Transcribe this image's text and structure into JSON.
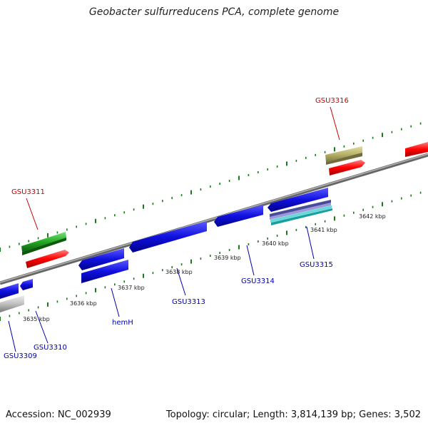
{
  "title": "Geobacter sulfurreducens PCA, complete genome",
  "footer": {
    "accession": "Accession: NC_002939",
    "stats": "Topology: circular; Length: 3,814,139 bp; Genes: 3,502"
  },
  "ticks": [
    "3635 kbp",
    "3636 kbp",
    "3637 kbp",
    "3638 kbp",
    "3639 kbp",
    "3640 kbp",
    "3641 kbp",
    "3642 kbp"
  ],
  "gene_labels": {
    "GSU3311": "GSU3311",
    "GSU3316": "GSU3316",
    "GSU3309": "GSU3309",
    "GSU3310": "GSU3310",
    "hemH": "hemH",
    "GSU3313": "GSU3313",
    "GSU3314": "GSU3314",
    "GSU3315": "GSU3315"
  },
  "colors": {
    "forward_label": "#cc0000",
    "reverse_label": "#0000aa",
    "cds_blue": "#1010e0",
    "cds_red": "#ff0000",
    "cds_green": "#22aa22",
    "cds_olive": "#b8b46a",
    "cds_gray": "#b8b8b8",
    "tick_green": "#1a7a1a",
    "backbone": "#888888"
  }
}
